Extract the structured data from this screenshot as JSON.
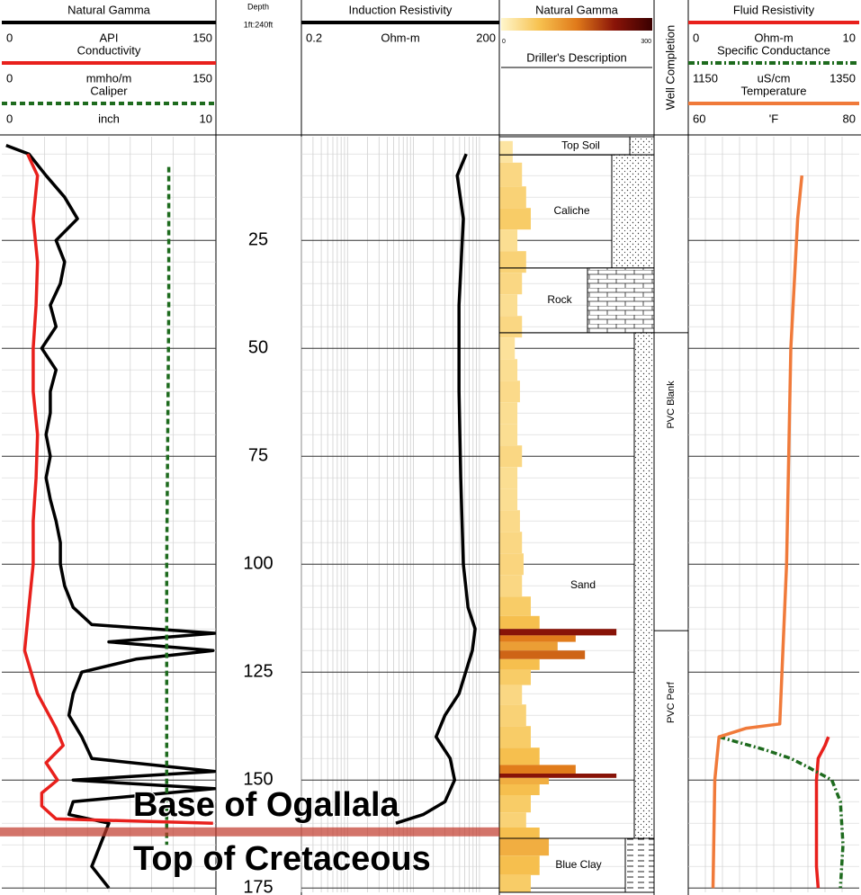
{
  "depth_track": {
    "title": "Depth",
    "scale": "1ft:240ft",
    "ylim": [
      1,
      176
    ],
    "yticks": [
      25,
      50,
      75,
      100,
      125,
      150,
      175
    ],
    "grid": true
  },
  "track1": {
    "type": "line",
    "curves": [
      {
        "name": "Natural Gamma",
        "unit": "API",
        "xlim": [
          0,
          150
        ],
        "color": "#000000",
        "dash": "solid",
        "depth": [
          3,
          5,
          10,
          15,
          20,
          25,
          30,
          35,
          40,
          45,
          50,
          55,
          60,
          65,
          70,
          75,
          80,
          85,
          90,
          95,
          100,
          105,
          110,
          114,
          116,
          118,
          120,
          122,
          125,
          130,
          135,
          140,
          145,
          148,
          150,
          152,
          155,
          158,
          160,
          165,
          170,
          175
        ],
        "values": [
          3,
          19,
          31,
          44,
          53,
          38,
          44,
          41,
          34,
          38,
          28,
          38,
          34,
          34,
          31,
          34,
          31,
          34,
          38,
          41,
          41,
          44,
          50,
          63,
          149,
          75,
          148,
          94,
          56,
          50,
          47,
          56,
          63,
          149,
          50,
          149,
          50,
          47,
          75,
          69,
          63,
          75
        ]
      },
      {
        "name": "Conductivity",
        "unit": "mmho/m",
        "xlim": [
          0,
          150
        ],
        "color": "#e8201c",
        "dash": "solid",
        "depth": [
          5,
          10,
          20,
          30,
          40,
          50,
          60,
          70,
          80,
          90,
          100,
          110,
          120,
          130,
          138,
          142,
          146,
          150,
          153,
          156,
          159,
          160
        ],
        "values": [
          18,
          25,
          22,
          25,
          24,
          22,
          22,
          25,
          24,
          22,
          22,
          19,
          16,
          25,
          38,
          43,
          31,
          39,
          28,
          28,
          38,
          148
        ]
      },
      {
        "name": "Caliper",
        "unit": "inch",
        "xlim": [
          0,
          10
        ],
        "color": "#1e6b1e",
        "dash": "dash",
        "depth": [
          8,
          40,
          100,
          165
        ],
        "values": [
          7.8,
          7.8,
          7.7,
          7.7
        ]
      }
    ]
  },
  "track2": {
    "type": "line",
    "curves": [
      {
        "name": "Induction Resistivity",
        "unit": "Ohm-m",
        "xlim": [
          0.2,
          200
        ],
        "log": true,
        "color": "#000000",
        "dash": "solid",
        "depth": [
          5,
          10,
          20,
          40,
          60,
          80,
          100,
          110,
          115,
          120,
          130,
          135,
          140,
          145,
          150,
          155,
          158,
          160
        ],
        "values": [
          63,
          46,
          57,
          49,
          49,
          52,
          57,
          67,
          86,
          78,
          49,
          30,
          22,
          36,
          42,
          30,
          14,
          5.4
        ]
      }
    ]
  },
  "track3": {
    "type": "fill",
    "name": "Natural Gamma",
    "xlim": [
      0,
      300
    ],
    "colormap": [
      "#fff6cc",
      "#f7c250",
      "#e07a1a",
      "#8a1408",
      "#3a0000"
    ],
    "depth": [
      4,
      10,
      15,
      20,
      25,
      30,
      35,
      40,
      45,
      50,
      55,
      60,
      65,
      70,
      75,
      80,
      85,
      90,
      95,
      100,
      105,
      110,
      114,
      116,
      117,
      119,
      121,
      123,
      126,
      130,
      135,
      140,
      145,
      148,
      149,
      150,
      152,
      155,
      160,
      162,
      165,
      170,
      174
    ],
    "values": [
      26,
      44,
      52,
      61,
      35,
      52,
      44,
      35,
      44,
      30,
      35,
      40,
      35,
      35,
      44,
      35,
      35,
      40,
      44,
      47,
      44,
      61,
      78,
      227,
      148,
      113,
      166,
      78,
      61,
      44,
      52,
      61,
      78,
      148,
      227,
      96,
      78,
      61,
      52,
      78,
      96,
      78,
      61
    ],
    "description_title": "Driller's Description",
    "lithology": [
      {
        "name": "Top Soil",
        "top": 1,
        "bottom": 5.2,
        "pattern": "dots"
      },
      {
        "name": "Caliche",
        "top": 5.2,
        "bottom": 31.4,
        "pattern": "dots"
      },
      {
        "name": "Rock",
        "top": 31.4,
        "bottom": 46.4,
        "pattern": "bricks"
      },
      {
        "name": "Sand",
        "top": 46.4,
        "bottom": 163.5,
        "pattern": "dots"
      },
      {
        "name": "Blue Clay",
        "top": 163.5,
        "bottom": 176,
        "pattern": "dashes"
      }
    ]
  },
  "completion": {
    "title": "Well Completion",
    "intervals": [
      {
        "name": "PVC Blank",
        "top": 46.4,
        "bottom": 115.4
      },
      {
        "name": "PVC Perf",
        "top": 115.4,
        "bottom": 176
      }
    ]
  },
  "track4": {
    "type": "line",
    "curves": [
      {
        "name": "Fluid Resistivity",
        "unit": "Ohm-m",
        "xlim": [
          0,
          10
        ],
        "color": "#e8201c",
        "dash": "solid",
        "depth": [
          140,
          142,
          145,
          150,
          160,
          170,
          175
        ],
        "values": [
          8.2,
          8.0,
          7.6,
          7.5,
          7.5,
          7.5,
          7.6
        ]
      },
      {
        "name": "Specific Conductance",
        "unit": "uS/cm",
        "xlim": [
          1150,
          1350
        ],
        "color": "#1e6b1e",
        "dash": "dashdot",
        "depth": [
          140,
          143,
          145,
          147,
          150,
          155,
          165,
          175
        ],
        "values": [
          1186,
          1240,
          1270,
          1290,
          1318,
          1328,
          1331,
          1328
        ]
      },
      {
        "name": "Temperature",
        "unit": "'F",
        "xlim": [
          60,
          80
        ],
        "color": "#f07a3a",
        "dash": "solid",
        "depth": [
          10,
          20,
          50,
          100,
          137,
          138,
          140,
          150,
          175
        ],
        "values": [
          73.3,
          72.8,
          72,
          71.5,
          70.7,
          66.8,
          63.6,
          63.1,
          62.9
        ]
      }
    ]
  },
  "annotation": {
    "depth": 162,
    "color": "#c0392b",
    "lines": [
      "Base of Ogallala",
      "Top of Cretaceous"
    ]
  }
}
